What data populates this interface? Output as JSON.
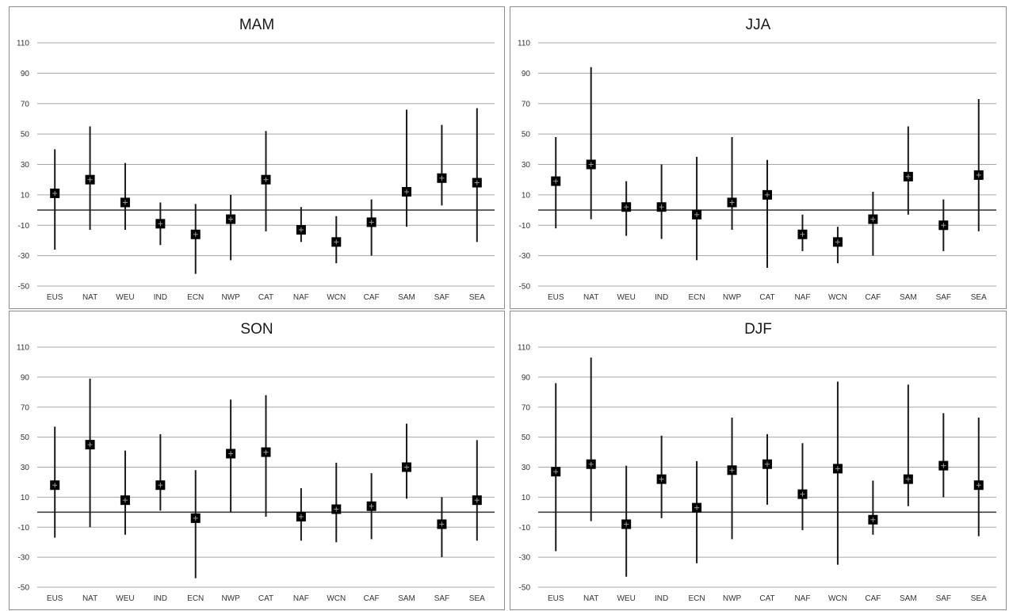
{
  "chart_data": [
    {
      "type": "scatter",
      "title": "MAM",
      "categories": [
        "EUS",
        "NAT",
        "WEU",
        "IND",
        "ECN",
        "NWP",
        "CAT",
        "NAF",
        "WCN",
        "CAF",
        "SAM",
        "SAF",
        "SEA"
      ],
      "values": [
        11,
        20,
        5,
        -9,
        -16,
        -6,
        20,
        -13,
        -21,
        -8,
        12,
        21,
        18
      ],
      "low": [
        -26,
        -13,
        -13,
        -23,
        -42,
        -33,
        -14,
        -21,
        -35,
        -30,
        -11,
        3,
        -21
      ],
      "high": [
        40,
        55,
        31,
        5,
        4,
        10,
        52,
        2,
        -4,
        7,
        66,
        56,
        67
      ],
      "ylim": [
        -50,
        110
      ],
      "yticks": [
        -50,
        -30,
        -10,
        10,
        30,
        50,
        70,
        90,
        110
      ],
      "grid": true,
      "legend": "none"
    },
    {
      "type": "scatter",
      "title": "JJA",
      "categories": [
        "EUS",
        "NAT",
        "WEU",
        "IND",
        "ECN",
        "NWP",
        "CAT",
        "NAF",
        "WCN",
        "CAF",
        "SAM",
        "SAF",
        "SEA"
      ],
      "values": [
        19,
        30,
        2,
        2,
        -3,
        5,
        10,
        -16,
        -21,
        -6,
        22,
        -10,
        23
      ],
      "low": [
        -12,
        -6,
        -17,
        -19,
        -33,
        -13,
        -38,
        -27,
        -35,
        -30,
        -3,
        -27,
        -14
      ],
      "high": [
        48,
        94,
        19,
        30,
        35,
        48,
        33,
        -3,
        -11,
        12,
        55,
        7,
        73
      ],
      "ylim": [
        -50,
        110
      ],
      "yticks": [
        -50,
        -30,
        -10,
        10,
        30,
        50,
        70,
        90,
        110
      ],
      "grid": true,
      "legend": "none"
    },
    {
      "type": "scatter",
      "title": "SON",
      "categories": [
        "EUS",
        "NAT",
        "WEU",
        "IND",
        "ECN",
        "NWP",
        "CAT",
        "NAF",
        "WCN",
        "CAF",
        "SAM",
        "SAF",
        "SEA"
      ],
      "values": [
        18,
        45,
        8,
        18,
        -4,
        39,
        40,
        -3,
        2,
        4,
        30,
        -8,
        8
      ],
      "low": [
        -17,
        -10,
        -15,
        1,
        -44,
        0,
        -3,
        -19,
        -20,
        -18,
        9,
        -30,
        -19
      ],
      "high": [
        57,
        89,
        41,
        52,
        28,
        75,
        78,
        16,
        33,
        26,
        59,
        10,
        48
      ],
      "ylim": [
        -50,
        110
      ],
      "yticks": [
        -50,
        -30,
        -10,
        10,
        30,
        50,
        70,
        90,
        110
      ],
      "grid": true,
      "legend": "none"
    },
    {
      "type": "scatter",
      "title": "DJF",
      "categories": [
        "EUS",
        "NAT",
        "WEU",
        "IND",
        "ECN",
        "NWP",
        "CAT",
        "NAF",
        "WCN",
        "CAF",
        "SAM",
        "SAF",
        "SEA"
      ],
      "values": [
        27,
        32,
        -8,
        22,
        3,
        28,
        32,
        12,
        29,
        -5,
        22,
        31,
        18
      ],
      "low": [
        -26,
        -6,
        -43,
        -4,
        -34,
        -18,
        5,
        -12,
        -35,
        -15,
        4,
        10,
        -16
      ],
      "high": [
        86,
        103,
        31,
        51,
        34,
        63,
        52,
        46,
        87,
        21,
        85,
        66,
        63
      ],
      "ylim": [
        -50,
        110
      ],
      "yticks": [
        -50,
        -30,
        -10,
        10,
        30,
        50,
        70,
        90,
        110
      ],
      "grid": true,
      "legend": "none"
    }
  ]
}
